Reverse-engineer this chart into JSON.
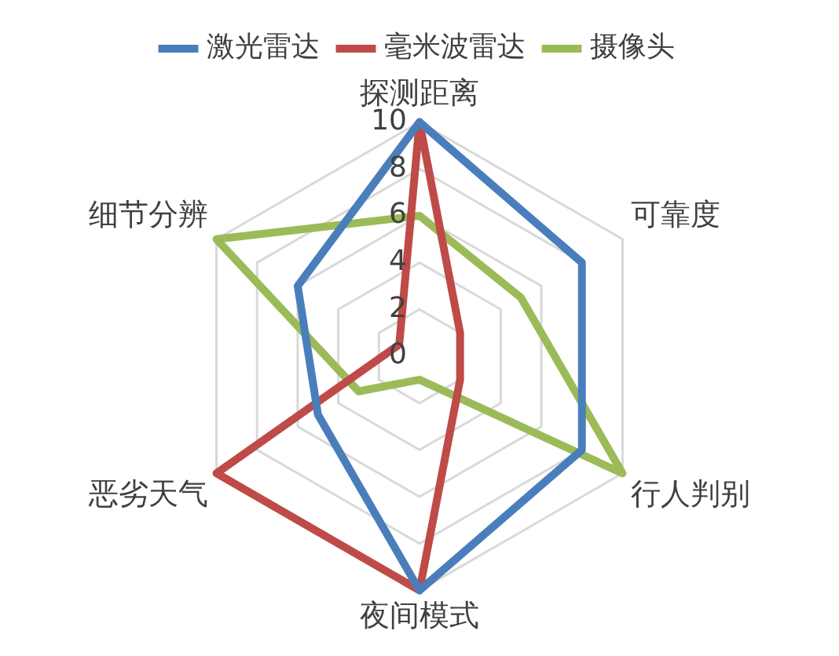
{
  "chart_data": {
    "type": "radar",
    "categories": [
      "探测距离",
      "可靠度",
      "行人判别",
      "夜间模式",
      "恶劣天气",
      "细节分辨"
    ],
    "series": [
      {
        "name": "激光雷达",
        "color": "#4a7ebb",
        "values": [
          10,
          8,
          8,
          10,
          5,
          6
        ]
      },
      {
        "name": "毫米波雷达",
        "color": "#be4b48",
        "values": [
          10,
          2,
          2,
          10,
          10,
          1
        ]
      },
      {
        "name": "摄像头",
        "color": "#9bbb59",
        "values": [
          6,
          5,
          10,
          1,
          3,
          10
        ]
      }
    ],
    "ylim": [
      0,
      10
    ],
    "yticks": [
      0,
      2,
      4,
      6,
      8,
      10
    ],
    "grid": true,
    "legend": "top",
    "marker": "none",
    "line_style": "solid"
  }
}
